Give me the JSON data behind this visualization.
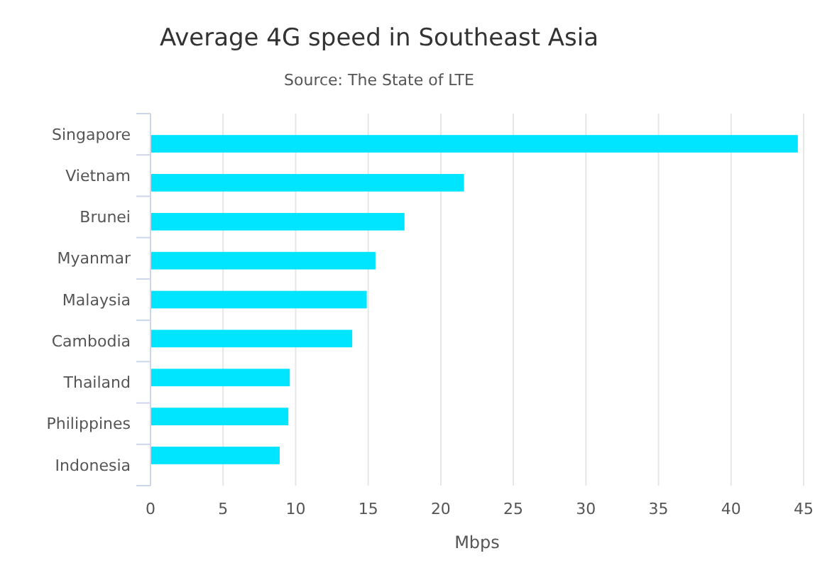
{
  "chart_data": {
    "type": "bar",
    "orientation": "horizontal",
    "title": "Average 4G speed in Southeast Asia",
    "subtitle": "Source: The State of LTE",
    "xlabel": "Mbps",
    "categories": [
      "Singapore",
      "Vietnam",
      "Brunei",
      "Myanmar",
      "Malaysia",
      "Cambodia",
      "Thailand",
      "Philippines",
      "Indonesia"
    ],
    "values": [
      44.6,
      21.6,
      17.5,
      15.5,
      14.9,
      13.9,
      9.6,
      9.5,
      8.9
    ],
    "color": "#00e5ff",
    "xlim": [
      0,
      45
    ],
    "xticks": [
      0,
      5,
      10,
      15,
      20,
      25,
      30,
      35,
      40,
      45
    ],
    "grid": "x"
  }
}
